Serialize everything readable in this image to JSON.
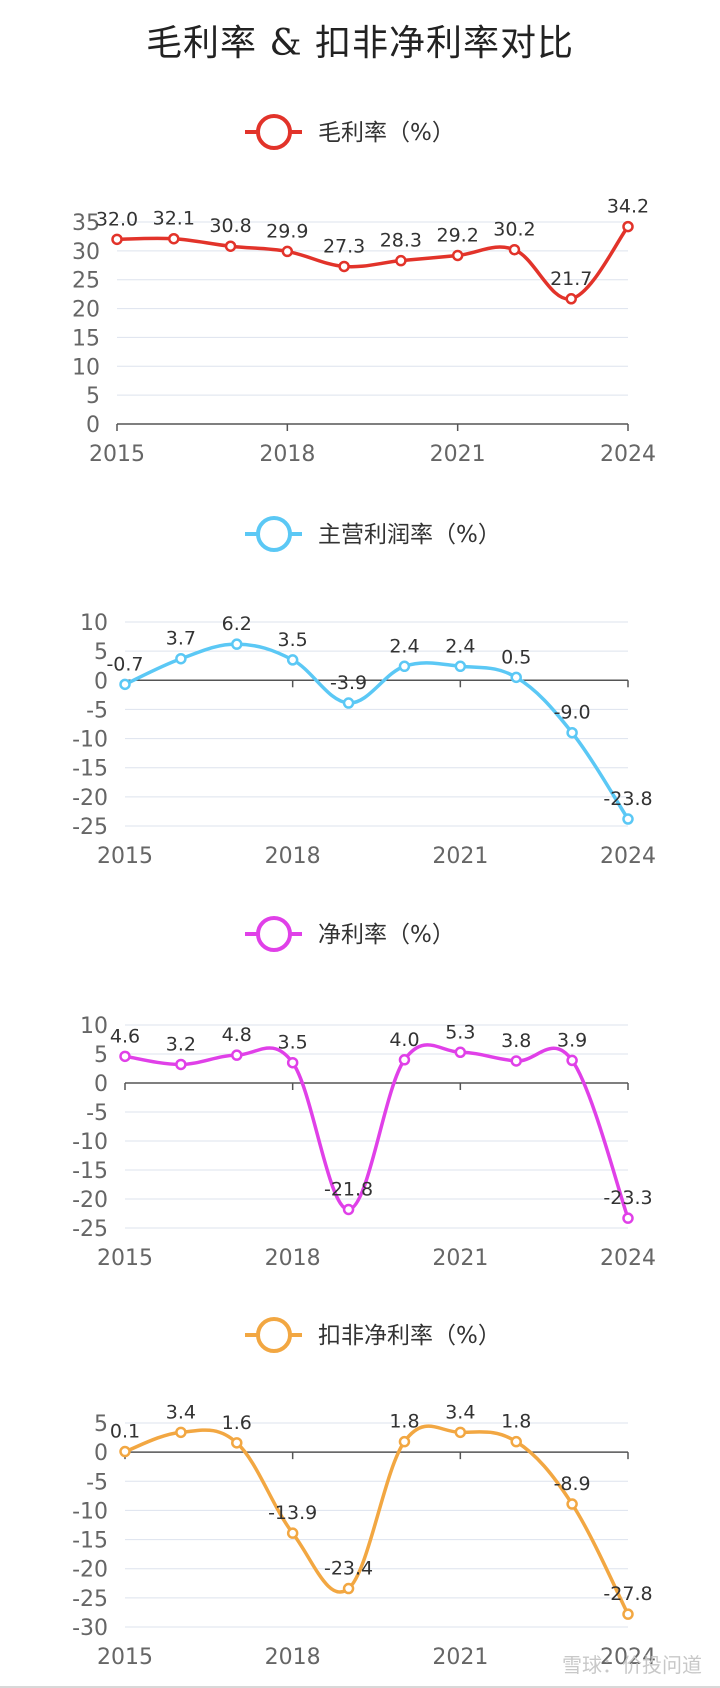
{
  "title": "毛利率 & 扣非净利率对比",
  "watermark": "雪球：价投问道",
  "chart_data": [
    {
      "type": "line",
      "legend": "毛利率（%）",
      "color": "#e2332a",
      "x": [
        2015,
        2016,
        2017,
        2018,
        2019,
        2020,
        2021,
        2022,
        2023,
        2024
      ],
      "x_ticks": [
        "2015",
        "2018",
        "2021",
        "2024"
      ],
      "values": [
        32.0,
        32.1,
        30.8,
        29.9,
        27.3,
        28.3,
        29.2,
        30.2,
        21.7,
        34.2
      ],
      "labels": [
        "32.0",
        "32.1",
        "30.8",
        "29.9",
        "27.3",
        "28.3",
        "29.2",
        "30.2",
        "21.7",
        "34.2"
      ],
      "ylim": [
        0,
        35
      ],
      "y_ticks": [
        0,
        5,
        10,
        15,
        20,
        25,
        30,
        35
      ],
      "grid": true,
      "legend_position": "top"
    },
    {
      "type": "line",
      "legend": "主营利润率（%）",
      "color": "#5bc8f5",
      "x": [
        2015,
        2016,
        2017,
        2018,
        2019,
        2020,
        2021,
        2022,
        2023,
        2024
      ],
      "x_ticks": [
        "2015",
        "2018",
        "2021",
        "2024"
      ],
      "values": [
        -0.7,
        3.7,
        6.2,
        3.5,
        -3.9,
        2.4,
        2.4,
        0.5,
        -9.0,
        -23.8
      ],
      "labels": [
        "-0.7",
        "3.7",
        "6.2",
        "3.5",
        "-3.9",
        "2.4",
        "2.4",
        "0.5",
        "-9.0",
        "-23.8"
      ],
      "ylim": [
        -25,
        10
      ],
      "y_ticks": [
        -25,
        -20,
        -15,
        -10,
        -5,
        0,
        5,
        10
      ],
      "grid": true,
      "legend_position": "top"
    },
    {
      "type": "line",
      "legend": "净利率（%）",
      "color": "#e040e8",
      "x": [
        2015,
        2016,
        2017,
        2018,
        2019,
        2020,
        2021,
        2022,
        2023,
        2024
      ],
      "x_ticks": [
        "2015",
        "2018",
        "2021",
        "2024"
      ],
      "values": [
        4.6,
        3.2,
        4.8,
        3.5,
        -21.8,
        4.0,
        5.3,
        3.8,
        3.9,
        -23.3
      ],
      "labels": [
        "4.6",
        "3.2",
        "4.8",
        "3.5",
        "-21.8",
        "4.0",
        "5.3",
        "3.8",
        "3.9",
        "-23.3"
      ],
      "ylim": [
        -25,
        10
      ],
      "y_ticks": [
        -25,
        -20,
        -15,
        -10,
        -5,
        0,
        5,
        10
      ],
      "grid": true,
      "legend_position": "top"
    },
    {
      "type": "line",
      "legend": "扣非净利率（%）",
      "color": "#f2a742",
      "x": [
        2015,
        2016,
        2017,
        2018,
        2019,
        2020,
        2021,
        2022,
        2023,
        2024
      ],
      "x_ticks": [
        "2015",
        "2018",
        "2021",
        "2024"
      ],
      "values": [
        0.1,
        3.4,
        1.6,
        -13.9,
        -23.4,
        1.8,
        3.4,
        1.8,
        -8.9,
        -27.8
      ],
      "labels": [
        "0.1",
        "3.4",
        "1.6",
        "-13.9",
        "-23.4",
        "1.8",
        "3.4",
        "1.8",
        "-8.9",
        "-27.8"
      ],
      "ylim": [
        -30,
        5
      ],
      "y_ticks": [
        -30,
        -25,
        -20,
        -15,
        -10,
        -5,
        0,
        5
      ],
      "grid": true,
      "legend_position": "top"
    }
  ]
}
